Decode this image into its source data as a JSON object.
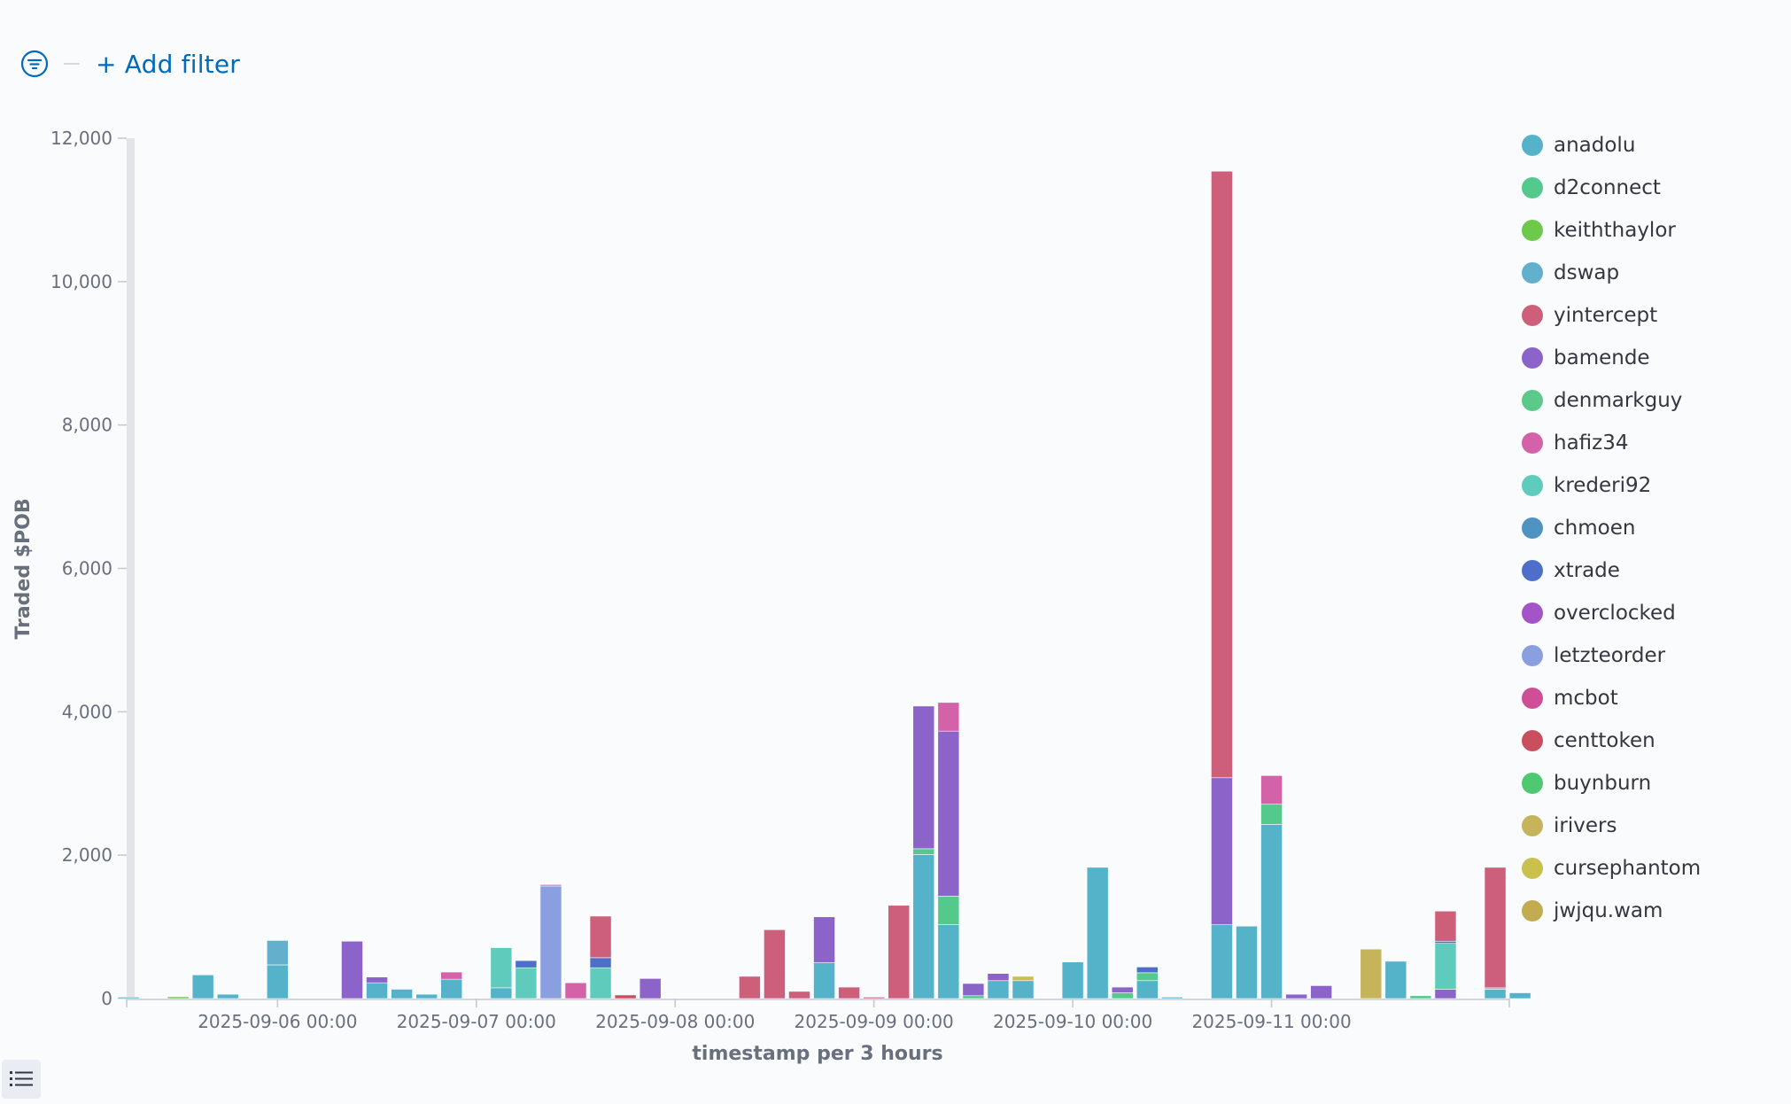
{
  "filter_bar": {
    "add_filter_label": "+ Add filter"
  },
  "colors": {
    "anadolu": "#54b3c9",
    "d2connect": "#54c98c",
    "keiththaylor": "#6dc94a",
    "dswap": "#62b0cc",
    "yintercept": "#cd5f7a",
    "bamende": "#8c63c9",
    "denmarkguy": "#5ac989",
    "hafiz34": "#d462a9",
    "krederi92": "#5fcbbd",
    "chmoen": "#4f93c3",
    "xtrade": "#4e6fc9",
    "overclocked": "#a553c9",
    "letzteorder": "#8a9fe0",
    "mcbot": "#cf4f97",
    "centtoken": "#c94e5e",
    "buynburn": "#4ec971",
    "irivers": "#c6b45b",
    "cursephantom": "#c9c04e",
    "jwjqu.wam": "#c2ac4f"
  },
  "chart_data": {
    "type": "bar",
    "stacked": true,
    "ylabel": "Traded $POB",
    "xlabel": "timestamp per 3 hours",
    "ylim": [
      0,
      12000
    ],
    "y_ticks": [
      "0",
      "2,000",
      "4,000",
      "6,000",
      "8,000",
      "10,000",
      "12,000"
    ],
    "x_ticks": [
      {
        "label": "2025-09-06 00:00",
        "x": "2025-09-06 00:00"
      },
      {
        "label": "2025-09-07 00:00",
        "x": "2025-09-07 00:00"
      },
      {
        "label": "2025-09-08 00:00",
        "x": "2025-09-08 00:00"
      },
      {
        "label": "2025-09-09 00:00",
        "x": "2025-09-09 00:00"
      },
      {
        "label": "2025-09-10 00:00",
        "x": "2025-09-10 00:00"
      },
      {
        "label": "2025-09-11 00:00",
        "x": "2025-09-11 00:00"
      }
    ],
    "x_range": [
      "2025-09-05 06:00",
      "2025-09-12 00:00"
    ],
    "grid": false,
    "legend_position": "right",
    "legend": [
      "anadolu",
      "d2connect",
      "keiththaylor",
      "dswap",
      "yintercept",
      "bamende",
      "denmarkguy",
      "hafiz34",
      "krederi92",
      "chmoen",
      "xtrade",
      "overclocked",
      "letzteorder",
      "mcbot",
      "centtoken",
      "buynburn",
      "irivers",
      "cursephantom",
      "jwjqu.wam"
    ],
    "bars": [
      {
        "x": "2025-09-05 06:00",
        "stack": [
          {
            "s": "anadolu",
            "v": 20
          }
        ]
      },
      {
        "x": "2025-09-05 12:00",
        "stack": [
          {
            "s": "keiththaylor",
            "v": 25
          }
        ]
      },
      {
        "x": "2025-09-05 15:00",
        "stack": [
          {
            "s": "anadolu",
            "v": 330
          }
        ]
      },
      {
        "x": "2025-09-05 18:00",
        "stack": [
          {
            "s": "anadolu",
            "v": 60
          }
        ]
      },
      {
        "x": "2025-09-06 00:00",
        "stack": [
          {
            "s": "anadolu",
            "v": 470
          },
          {
            "s": "dswap",
            "v": 340
          }
        ]
      },
      {
        "x": "2025-09-06 09:00",
        "stack": [
          {
            "s": "bamende",
            "v": 800
          }
        ]
      },
      {
        "x": "2025-09-06 12:00",
        "stack": [
          {
            "s": "anadolu",
            "v": 220
          },
          {
            "s": "bamende",
            "v": 80
          }
        ]
      },
      {
        "x": "2025-09-06 15:00",
        "stack": [
          {
            "s": "anadolu",
            "v": 130
          }
        ]
      },
      {
        "x": "2025-09-06 18:00",
        "stack": [
          {
            "s": "anadolu",
            "v": 60
          }
        ]
      },
      {
        "x": "2025-09-06 21:00",
        "stack": [
          {
            "s": "anadolu",
            "v": 270
          },
          {
            "s": "hafiz34",
            "v": 100
          }
        ]
      },
      {
        "x": "2025-09-07 03:00",
        "stack": [
          {
            "s": "anadolu",
            "v": 150
          },
          {
            "s": "krederi92",
            "v": 560
          }
        ]
      },
      {
        "x": "2025-09-07 06:00",
        "stack": [
          {
            "s": "krederi92",
            "v": 430
          },
          {
            "s": "xtrade",
            "v": 100
          }
        ]
      },
      {
        "x": "2025-09-07 09:00",
        "stack": [
          {
            "s": "letzteorder",
            "v": 1570
          },
          {
            "s": "hafiz34",
            "v": 20
          }
        ]
      },
      {
        "x": "2025-09-07 12:00",
        "stack": [
          {
            "s": "hafiz34",
            "v": 220
          }
        ]
      },
      {
        "x": "2025-09-07 15:00",
        "stack": [
          {
            "s": "krederi92",
            "v": 430
          },
          {
            "s": "xtrade",
            "v": 140
          },
          {
            "s": "yintercept",
            "v": 580
          }
        ]
      },
      {
        "x": "2025-09-07 18:00",
        "stack": [
          {
            "s": "centtoken",
            "v": 50
          }
        ]
      },
      {
        "x": "2025-09-07 21:00",
        "stack": [
          {
            "s": "bamende",
            "v": 280
          }
        ]
      },
      {
        "x": "2025-09-08 09:00",
        "stack": [
          {
            "s": "yintercept",
            "v": 310
          }
        ]
      },
      {
        "x": "2025-09-08 12:00",
        "stack": [
          {
            "s": "yintercept",
            "v": 960
          }
        ]
      },
      {
        "x": "2025-09-08 15:00",
        "stack": [
          {
            "s": "yintercept",
            "v": 100
          }
        ]
      },
      {
        "x": "2025-09-08 18:00",
        "stack": [
          {
            "s": "anadolu",
            "v": 500
          },
          {
            "s": "bamende",
            "v": 640
          }
        ]
      },
      {
        "x": "2025-09-08 21:00",
        "stack": [
          {
            "s": "yintercept",
            "v": 160
          }
        ]
      },
      {
        "x": "2025-09-09 00:00",
        "stack": [
          {
            "s": "yintercept",
            "v": 20
          }
        ]
      },
      {
        "x": "2025-09-09 03:00",
        "stack": [
          {
            "s": "yintercept",
            "v": 1300
          }
        ]
      },
      {
        "x": "2025-09-09 06:00",
        "stack": [
          {
            "s": "anadolu",
            "v": 2010
          },
          {
            "s": "d2connect",
            "v": 80
          },
          {
            "s": "bamende",
            "v": 1990
          }
        ]
      },
      {
        "x": "2025-09-09 09:00",
        "stack": [
          {
            "s": "anadolu",
            "v": 1030
          },
          {
            "s": "d2connect",
            "v": 400
          },
          {
            "s": "bamende",
            "v": 2300
          },
          {
            "s": "hafiz34",
            "v": 400
          }
        ]
      },
      {
        "x": "2025-09-09 12:00",
        "stack": [
          {
            "s": "d2connect",
            "v": 40
          },
          {
            "s": "bamende",
            "v": 170
          }
        ]
      },
      {
        "x": "2025-09-09 15:00",
        "stack": [
          {
            "s": "anadolu",
            "v": 250
          },
          {
            "s": "bamende",
            "v": 100
          }
        ]
      },
      {
        "x": "2025-09-09 18:00",
        "stack": [
          {
            "s": "anadolu",
            "v": 250
          },
          {
            "s": "cursephantom",
            "v": 60
          }
        ]
      },
      {
        "x": "2025-09-10 00:00",
        "stack": [
          {
            "s": "anadolu",
            "v": 510
          }
        ]
      },
      {
        "x": "2025-09-10 03:00",
        "stack": [
          {
            "s": "anadolu",
            "v": 1830
          }
        ]
      },
      {
        "x": "2025-09-10 06:00",
        "stack": [
          {
            "s": "d2connect",
            "v": 80
          },
          {
            "s": "bamende",
            "v": 80
          }
        ]
      },
      {
        "x": "2025-09-10 09:00",
        "stack": [
          {
            "s": "anadolu",
            "v": 250
          },
          {
            "s": "d2connect",
            "v": 110
          },
          {
            "s": "xtrade",
            "v": 80
          }
        ]
      },
      {
        "x": "2025-09-10 12:00",
        "stack": [
          {
            "s": "anadolu",
            "v": 20
          }
        ]
      },
      {
        "x": "2025-09-10 18:00",
        "stack": [
          {
            "s": "anadolu",
            "v": 1030
          },
          {
            "s": "bamende",
            "v": 2050
          },
          {
            "s": "yintercept",
            "v": 8460
          }
        ]
      },
      {
        "x": "2025-09-10 21:00",
        "stack": [
          {
            "s": "anadolu",
            "v": 1010
          }
        ]
      },
      {
        "x": "2025-09-11 00:00",
        "stack": [
          {
            "s": "anadolu",
            "v": 2430
          },
          {
            "s": "d2connect",
            "v": 280
          },
          {
            "s": "hafiz34",
            "v": 400
          }
        ]
      },
      {
        "x": "2025-09-11 03:00",
        "stack": [
          {
            "s": "bamende",
            "v": 60
          }
        ]
      },
      {
        "x": "2025-09-11 06:00",
        "stack": [
          {
            "s": "bamende",
            "v": 180
          }
        ]
      },
      {
        "x": "2025-09-11 12:00",
        "stack": [
          {
            "s": "irivers",
            "v": 690
          }
        ]
      },
      {
        "x": "2025-09-11 15:00",
        "stack": [
          {
            "s": "anadolu",
            "v": 520
          }
        ]
      },
      {
        "x": "2025-09-11 18:00",
        "stack": [
          {
            "s": "d2connect",
            "v": 40
          }
        ]
      },
      {
        "x": "2025-09-11 21:00",
        "stack": [
          {
            "s": "bamende",
            "v": 130
          },
          {
            "s": "krederi92",
            "v": 640
          },
          {
            "s": "xtrade",
            "v": 30
          },
          {
            "s": "yintercept",
            "v": 420
          }
        ]
      },
      {
        "x": "2025-09-12 03:00",
        "stack": [
          {
            "s": "anadolu",
            "v": 130
          },
          {
            "s": "d2connect",
            "v": 20
          },
          {
            "s": "yintercept",
            "v": 1680
          }
        ]
      },
      {
        "x": "2025-09-12 06:00",
        "stack": [
          {
            "s": "anadolu",
            "v": 80
          }
        ]
      }
    ]
  }
}
